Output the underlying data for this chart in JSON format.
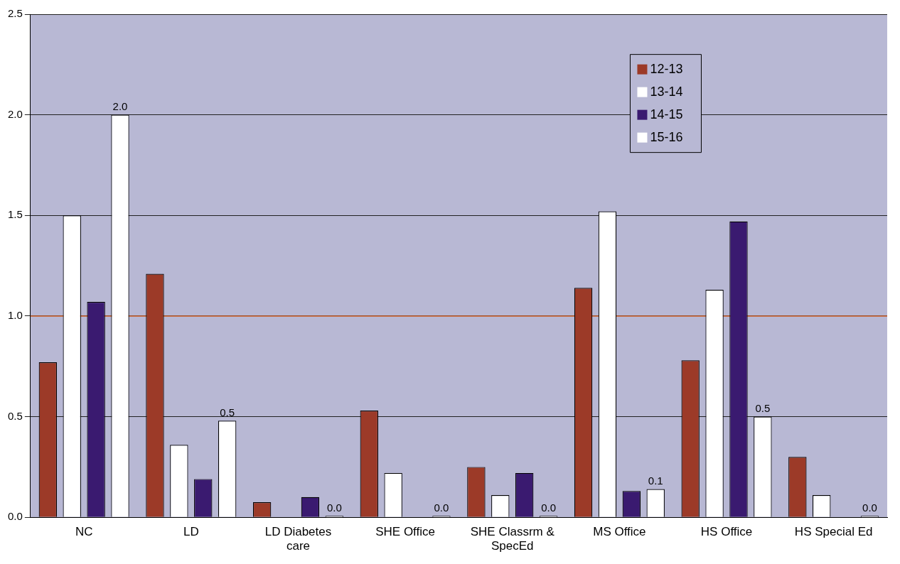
{
  "chart_data": {
    "type": "bar",
    "categories": [
      "NC",
      "LD",
      "LD Diabetes care",
      "SHE Office",
      "SHE Classrm & SpecEd",
      "MS Office",
      "HS Office",
      "HS Special Ed"
    ],
    "series": [
      {
        "name": "12-13",
        "color": "#9c3a28",
        "values": [
          0.77,
          1.21,
          0.075,
          0.53,
          0.25,
          1.14,
          0.78,
          0.3
        ]
      },
      {
        "name": "13-14",
        "color": "#ffffff",
        "values": [
          1.5,
          0.36,
          null,
          0.22,
          0.11,
          1.52,
          1.13,
          0.11
        ]
      },
      {
        "name": "14-15",
        "color": "#3a1a70",
        "values": [
          1.07,
          0.19,
          0.1,
          null,
          0.22,
          0.13,
          1.47,
          null
        ]
      },
      {
        "name": "15-16",
        "color": "#ffffff",
        "values": [
          2.0,
          0.48,
          0,
          0,
          0,
          0.14,
          0.5,
          0
        ],
        "value_labels": [
          "2.0",
          "0.5",
          "0.0",
          "0.0",
          "0.0",
          "0.1",
          "0.5",
          "0.0"
        ]
      }
    ],
    "ylim": [
      0,
      2.5
    ],
    "yticks": [
      {
        "value": 0,
        "label": "0.0"
      },
      {
        "value": 0.5,
        "label": "0.5"
      },
      {
        "value": 1,
        "label": "1.0"
      },
      {
        "value": 1.5,
        "label": "1.5"
      },
      {
        "value": 2,
        "label": "2.0"
      },
      {
        "value": 2.5,
        "label": "2.5"
      }
    ],
    "grid": "y",
    "legend": "top right",
    "ref_lines": [
      {
        "axis": "y",
        "value": 1,
        "color": "#d0602a"
      }
    ]
  }
}
